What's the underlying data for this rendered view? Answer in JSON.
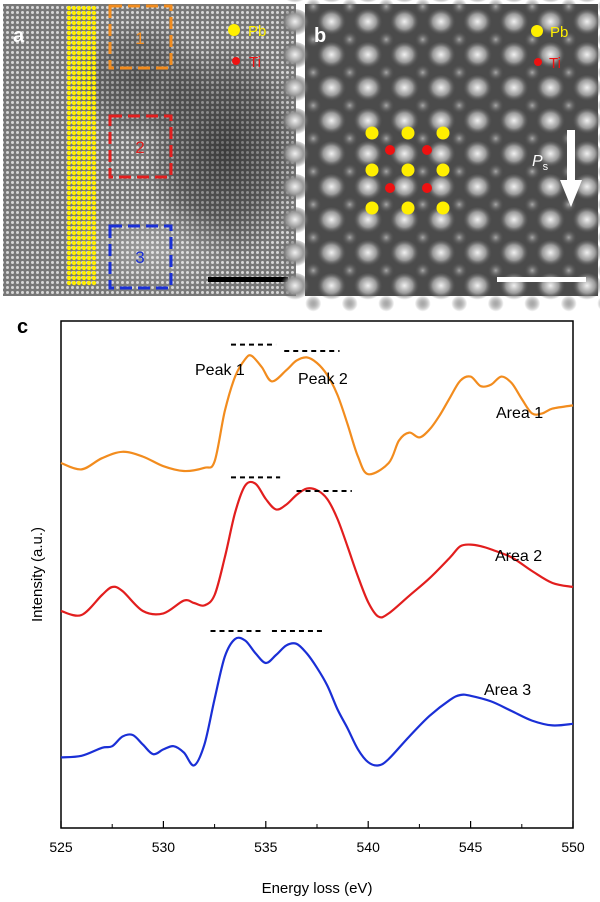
{
  "panel_a": {
    "letter": "a",
    "legend": [
      {
        "label": "Pb",
        "color": "#ffef00"
      },
      {
        "label": "Ti",
        "color": "#ee1111"
      }
    ],
    "boxes": [
      {
        "label": "1",
        "color": "#f28c1e"
      },
      {
        "label": "2",
        "color": "#e21e1e"
      },
      {
        "label": "3",
        "color": "#1a2fd6"
      }
    ]
  },
  "panel_b": {
    "letter": "b",
    "legend": [
      {
        "label": "Pb",
        "color": "#ffef00"
      },
      {
        "label": "Ti",
        "color": "#ee1111"
      }
    ],
    "polarization_label": "P",
    "polarization_subscript": "s"
  },
  "panel_c": {
    "letter": "c"
  },
  "chart_data": {
    "type": "line",
    "xlabel": "Energy loss (eV)",
    "ylabel": "Intensity (a.u.)",
    "xlim": [
      525,
      550
    ],
    "xticks": [
      "525",
      "530",
      "535",
      "540",
      "545",
      "550"
    ],
    "yticks": "none",
    "grid": false,
    "annotations": [
      "Peak 1",
      "Peak 2"
    ],
    "series": [
      {
        "name": "Area 1",
        "color": "#f28c1e",
        "x": [
          525,
          526,
          527,
          528,
          529,
          530,
          531,
          532,
          532.5,
          533,
          533.5,
          534,
          534.3,
          534.8,
          535.3,
          536,
          536.5,
          537,
          537.5,
          538,
          538.5,
          539,
          539.5,
          540,
          541,
          541.5,
          542,
          542.5,
          543,
          543.5,
          544,
          544.5,
          545,
          545.5,
          546,
          546.5,
          547,
          547.5,
          548,
          548.5,
          549,
          550
        ],
        "y": [
          0.3,
          0.22,
          0.36,
          0.44,
          0.38,
          0.26,
          0.2,
          0.24,
          0.32,
          0.95,
          1.38,
          1.6,
          1.64,
          1.5,
          1.32,
          1.46,
          1.58,
          1.62,
          1.55,
          1.4,
          1.15,
          0.78,
          0.38,
          0.16,
          0.3,
          0.58,
          0.68,
          0.62,
          0.72,
          0.9,
          1.12,
          1.33,
          1.38,
          1.26,
          1.28,
          1.38,
          1.3,
          1.1,
          0.92,
          0.92,
          0.98,
          1.02
        ]
      },
      {
        "name": "Area 2",
        "color": "#e21e1e",
        "x": [
          525,
          526,
          527,
          527.5,
          528,
          529,
          530,
          531,
          531.5,
          532,
          532.5,
          533,
          533.5,
          534,
          534.5,
          535,
          535.5,
          536,
          536.5,
          537,
          537.5,
          538,
          538.5,
          539,
          539.5,
          540,
          540.5,
          541,
          542,
          543,
          544,
          544.5,
          545,
          545.5,
          546,
          547,
          548,
          549,
          550
        ],
        "y": [
          0.05,
          0.0,
          0.25,
          0.35,
          0.3,
          0.05,
          0.02,
          0.18,
          0.15,
          0.12,
          0.25,
          0.72,
          1.28,
          1.62,
          1.64,
          1.45,
          1.32,
          1.38,
          1.5,
          1.58,
          1.56,
          1.45,
          1.2,
          0.85,
          0.48,
          0.16,
          -0.02,
          0.02,
          0.24,
          0.46,
          0.72,
          0.86,
          0.88,
          0.86,
          0.82,
          0.72,
          0.55,
          0.4,
          0.35
        ]
      },
      {
        "name": "Area 3",
        "color": "#1a2fd6",
        "x": [
          525,
          526,
          527,
          527.5,
          528,
          528.5,
          529,
          529.5,
          530,
          530.5,
          531,
          531.5,
          532,
          532.5,
          533,
          533.5,
          534,
          534.5,
          535,
          535.5,
          536,
          536.5,
          537,
          537.5,
          538,
          538.5,
          539,
          539.5,
          540,
          540.5,
          541,
          542,
          543,
          544,
          544.5,
          545,
          546,
          547,
          548,
          549,
          550
        ],
        "y": [
          0.72,
          0.74,
          0.84,
          0.86,
          0.98,
          1.0,
          0.88,
          0.76,
          0.82,
          0.86,
          0.78,
          0.62,
          0.88,
          1.45,
          1.98,
          2.2,
          2.18,
          2.02,
          1.9,
          2.0,
          2.12,
          2.14,
          2.02,
          1.84,
          1.62,
          1.32,
          1.08,
          0.82,
          0.66,
          0.62,
          0.7,
          0.98,
          1.24,
          1.44,
          1.5,
          1.49,
          1.42,
          1.3,
          1.18,
          1.12,
          1.14
        ]
      }
    ]
  }
}
